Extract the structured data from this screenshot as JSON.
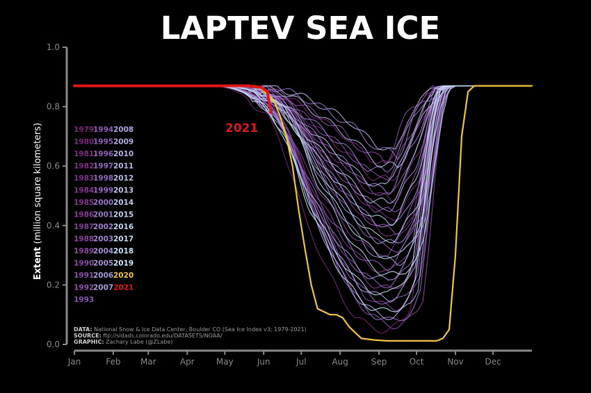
{
  "title": "LAPTEV SEA ICE",
  "ylabel_bold": "Extent",
  "ylabel_rest": " (million square kilometers)",
  "credits": {
    "data_label": "DATA:",
    "data_text": " National Snow & Ice Data Center, Boulder CO (Sea Ice Index v3; 1979-2021)",
    "source_label": "SOURCE:",
    "source_text": " ftp://sidads.colorado.edu/DATASETS/NOAA/",
    "graphic_label": "GRAPHIC:",
    "graphic_text": " Zachary Labe (@ZLabe)"
  },
  "colors": {
    "background": "#000000",
    "highlight_2021": "#e0161b",
    "highlight_2020": "#f3c73c",
    "axis": "#8a8a8a"
  },
  "chart_data": {
    "type": "line",
    "title": "LAPTEV SEA ICE",
    "ylabel": "Extent (million square kilometers)",
    "xlabel": "",
    "x_ticks": [
      "Jan",
      "Feb",
      "Mar",
      "Apr",
      "May",
      "Jun",
      "Jul",
      "Aug",
      "Sep",
      "Oct",
      "Nov",
      "Dec"
    ],
    "y_ticks": [
      "0.0",
      "0.2",
      "0.4",
      "0.6",
      "0.8",
      "1.0"
    ],
    "ylim": [
      0,
      1.0
    ],
    "xlim_days": [
      1,
      366
    ],
    "legend_columns": [
      [
        "1979",
        "1980",
        "1981",
        "1982",
        "1983",
        "1984",
        "1985",
        "1986",
        "1987",
        "1988",
        "1989",
        "1990",
        "1991",
        "1992",
        "1993"
      ],
      [
        "1994",
        "1995",
        "1996",
        "1997",
        "1998",
        "1999",
        "2000",
        "2001",
        "2002",
        "2003",
        "2004",
        "2005",
        "2006",
        "2007"
      ],
      [
        "2008",
        "2009",
        "2010",
        "2011",
        "2012",
        "2013",
        "2014",
        "2015",
        "2016",
        "2017",
        "2018",
        "2019",
        "2020",
        "2021"
      ]
    ],
    "annotation": "2021",
    "highlight_series": [
      {
        "name": "2021",
        "x_day": [
          1,
          60,
          120,
          140,
          150,
          155,
          157,
          158
        ],
        "y": [
          0.87,
          0.87,
          0.87,
          0.87,
          0.865,
          0.85,
          0.8,
          0.78
        ]
      },
      {
        "name": "2020",
        "x_day": [
          1,
          120,
          145,
          150,
          160,
          165,
          170,
          175,
          180,
          185,
          190,
          195,
          200,
          205,
          210,
          215,
          220,
          225,
          230,
          240,
          250,
          260,
          270,
          280,
          285,
          290,
          295,
          300,
          305,
          310,
          315,
          320,
          366
        ],
        "y": [
          0.87,
          0.87,
          0.87,
          0.86,
          0.82,
          0.77,
          0.7,
          0.6,
          0.45,
          0.32,
          0.2,
          0.12,
          0.11,
          0.1,
          0.1,
          0.09,
          0.06,
          0.04,
          0.02,
          0.015,
          0.012,
          0.012,
          0.012,
          0.012,
          0.012,
          0.012,
          0.02,
          0.05,
          0.3,
          0.7,
          0.85,
          0.87,
          0.87
        ]
      }
    ],
    "spread": {
      "x_day": [
        1,
        120,
        130,
        140,
        150,
        160,
        170,
        180,
        190,
        200,
        210,
        220,
        230,
        240,
        250,
        255,
        260,
        265,
        270,
        275,
        280,
        285,
        290,
        295,
        300,
        366
      ],
      "upper": [
        0.87,
        0.87,
        0.87,
        0.87,
        0.87,
        0.87,
        0.86,
        0.85,
        0.84,
        0.82,
        0.8,
        0.78,
        0.74,
        0.7,
        0.7,
        0.68,
        0.72,
        0.79,
        0.84,
        0.87,
        0.87,
        0.87,
        0.87,
        0.87,
        0.87,
        0.87
      ],
      "lower": [
        0.87,
        0.87,
        0.86,
        0.84,
        0.8,
        0.76,
        0.68,
        0.55,
        0.4,
        0.3,
        0.2,
        0.12,
        0.06,
        0.03,
        0.015,
        0.015,
        0.02,
        0.03,
        0.05,
        0.1,
        0.3,
        0.55,
        0.75,
        0.85,
        0.87,
        0.87
      ]
    }
  }
}
